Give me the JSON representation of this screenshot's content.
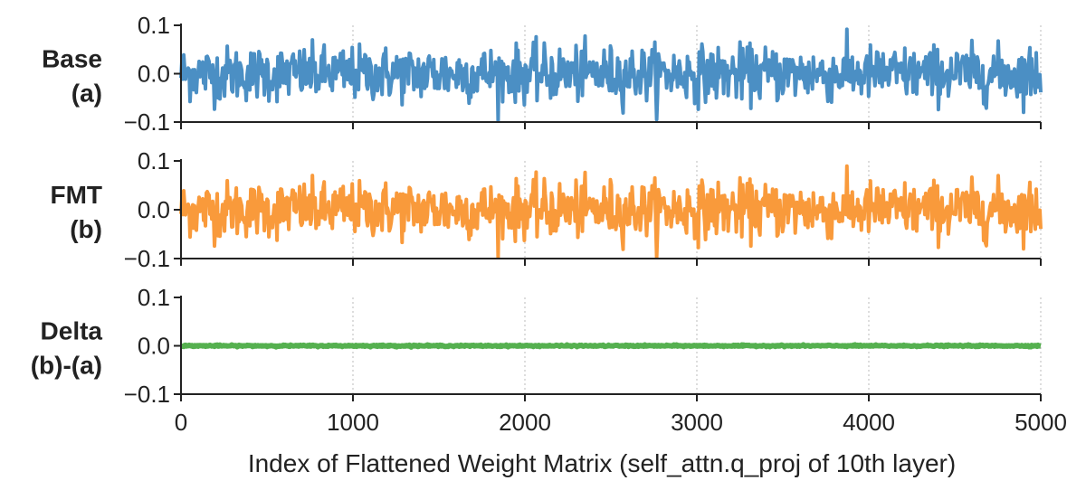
{
  "chart_data": [
    {
      "type": "line",
      "row_label": [
        "Base",
        "(a)"
      ],
      "series": [
        {
          "color": "#4b8fc4",
          "amplitude": 0.1
        }
      ],
      "x_range": [
        0,
        5000
      ],
      "ylim": [
        -0.1,
        0.1
      ],
      "yticks": [
        "0.1",
        "0.0",
        "−0.1"
      ],
      "grid": "vertical dotted at x ticks"
    },
    {
      "type": "line",
      "row_label": [
        "FMT",
        "(b)"
      ],
      "series": [
        {
          "color": "#f99a3b",
          "amplitude": 0.1
        }
      ],
      "x_range": [
        0,
        5000
      ],
      "ylim": [
        -0.1,
        0.1
      ],
      "yticks": [
        "0.1",
        "0.0",
        "−0.1"
      ],
      "grid": "vertical dotted at x ticks"
    },
    {
      "type": "line",
      "row_label": [
        "Delta",
        "(b)-(a)"
      ],
      "series": [
        {
          "color": "#55b04f",
          "amplitude": 0.002
        }
      ],
      "x_range": [
        0,
        5000
      ],
      "ylim": [
        -0.1,
        0.1
      ],
      "yticks": [
        "0.1",
        "0.0",
        "−0.1"
      ],
      "grid": "vertical dotted at x ticks"
    }
  ],
  "x_axis": {
    "ticks": [
      0,
      1000,
      2000,
      3000,
      4000,
      5000
    ],
    "tick_labels": [
      "0",
      "1000",
      "2000",
      "3000",
      "4000",
      "5000"
    ],
    "label": "Index of Flattened Weight Matrix (self_attn.q_proj of 10th layer)"
  }
}
